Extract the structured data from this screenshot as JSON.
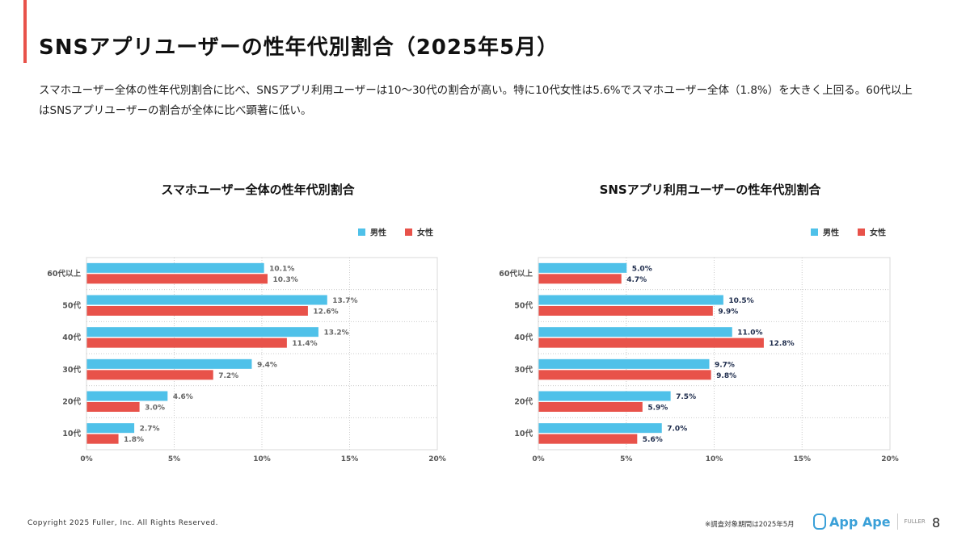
{
  "title": "SNSアプリユーザーの性年代別割合（2025年5月）",
  "lead": "スマホユーザー全体の性年代別割合に比べ、SNSアプリ利用ユーザーは10〜30代の割合が高い。特に10代女性は5.6%でスマホユーザー全体（1.8%）を大きく上回る。60代以上はSNSアプリユーザーの割合が全体に比べ顕著に低い。",
  "colors": {
    "male": "#4fc1e9",
    "female": "#e8524a",
    "accent": "#e8524a"
  },
  "chart_data": [
    {
      "type": "bar",
      "orientation": "horizontal",
      "title": "スマホユーザー全体の性年代別割合",
      "categories": [
        "60代以上",
        "50代",
        "40代",
        "30代",
        "20代",
        "10代"
      ],
      "series": [
        {
          "name": "男性",
          "values": [
            10.1,
            13.7,
            13.2,
            9.4,
            4.6,
            2.7
          ]
        },
        {
          "name": "女性",
          "values": [
            10.3,
            12.6,
            11.4,
            7.2,
            3.0,
            1.8
          ]
        }
      ],
      "xlim": [
        0,
        20
      ],
      "xticks": [
        "0%",
        "5%",
        "10%",
        "15%",
        "20%"
      ],
      "grid": true,
      "legend": "top-right",
      "label_color": "#666666"
    },
    {
      "type": "bar",
      "orientation": "horizontal",
      "title": "SNSアプリ利用ユーザーの性年代別割合",
      "categories": [
        "60代以上",
        "50代",
        "40代",
        "30代",
        "20代",
        "10代"
      ],
      "series": [
        {
          "name": "男性",
          "values": [
            5.0,
            10.5,
            11.0,
            9.7,
            7.5,
            7.0
          ]
        },
        {
          "name": "女性",
          "values": [
            4.7,
            9.9,
            12.8,
            9.8,
            5.9,
            5.6
          ]
        }
      ],
      "xlim": [
        0,
        20
      ],
      "xticks": [
        "0%",
        "5%",
        "10%",
        "15%",
        "20%"
      ],
      "grid": true,
      "legend": "top-right",
      "label_color": "#1f2d4d"
    }
  ],
  "footer": {
    "copyright": "Copyright 2025 Fuller, Inc. All Rights Reserved.",
    "note": "※調査対象期間は2025年5月",
    "logo": "App Ape",
    "powered": "FULLER",
    "page": "8"
  }
}
